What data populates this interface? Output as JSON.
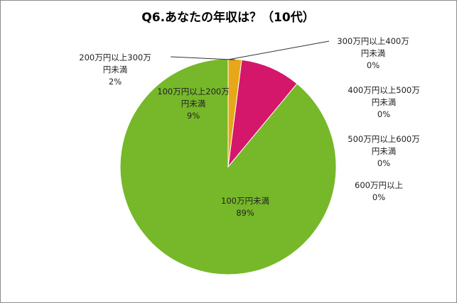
{
  "chart_data": {
    "type": "pie",
    "title": "Q6.あなたの年収は？（10代）",
    "slices": [
      {
        "name": "100万円未満",
        "value": 89,
        "percent_label": "89%",
        "color": "#76B82A",
        "label_lines": [
          "100万円未満"
        ]
      },
      {
        "name": "100万円以上200万円未満",
        "value": 9,
        "percent_label": "9%",
        "color": "#D4176B",
        "label_lines": [
          "100万円以上200万",
          "円未満"
        ]
      },
      {
        "name": "200万円以上300万円未満",
        "value": 2,
        "percent_label": "2%",
        "color": "#E6A817",
        "label_lines": [
          "200万円以上300万",
          "円未満"
        ]
      },
      {
        "name": "300万円以上400万円未満",
        "value": 0,
        "percent_label": "0%",
        "color": "#4F81BD",
        "label_lines": [
          "300万円以上400万",
          "円未満"
        ]
      },
      {
        "name": "400万円以上500万円未満",
        "value": 0,
        "percent_label": "0%",
        "color": "#8064A2",
        "label_lines": [
          "400万円以上500万",
          "円未満"
        ]
      },
      {
        "name": "500万円以上600万円未満",
        "value": 0,
        "percent_label": "0%",
        "color": "#4BACC6",
        "label_lines": [
          "500万円以上600万",
          "円未満"
        ]
      },
      {
        "name": "600万円以上",
        "value": 0,
        "percent_label": "0%",
        "color": "#F79646",
        "label_lines": [
          "600万円以上"
        ]
      }
    ]
  }
}
